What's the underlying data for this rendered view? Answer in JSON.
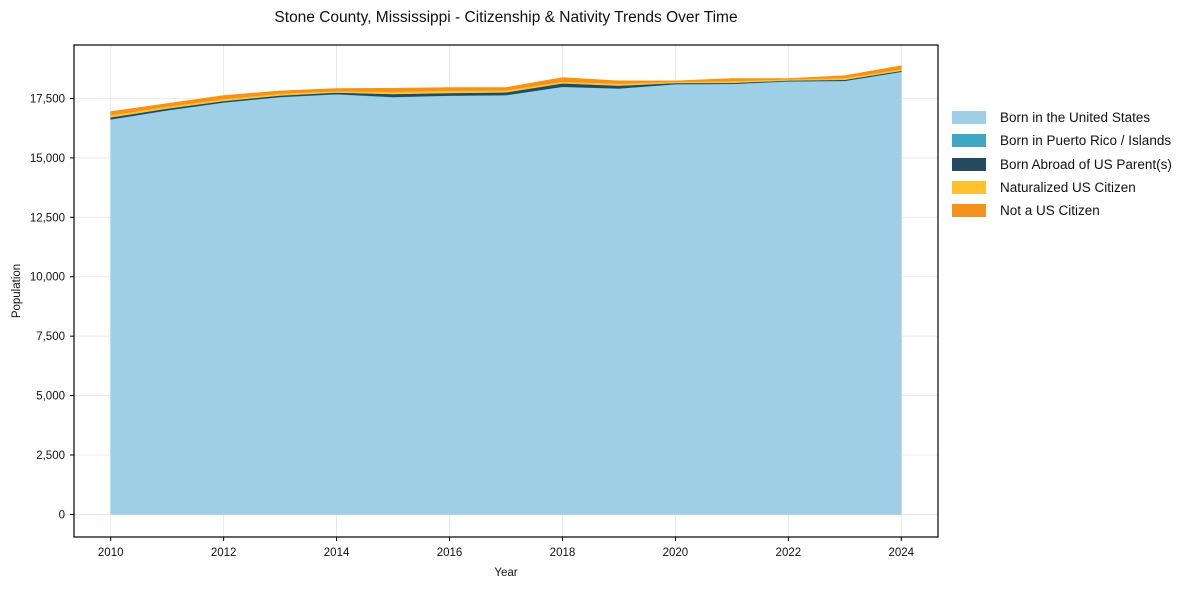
{
  "chart_data": {
    "type": "area",
    "stacked": true,
    "title": "Stone County, Mississippi - Citizenship & Nativity Trends Over Time",
    "xlabel": "Year",
    "ylabel": "Population",
    "x": [
      2010,
      2011,
      2012,
      2013,
      2014,
      2015,
      2016,
      2017,
      2018,
      2019,
      2020,
      2021,
      2022,
      2023,
      2024
    ],
    "x_ticks": [
      "2010",
      "2012",
      "2014",
      "2016",
      "2018",
      "2020",
      "2022",
      "2024"
    ],
    "y_ticks": [
      "0",
      "2,500",
      "5,000",
      "7,500",
      "10,000",
      "12,500",
      "15,000",
      "17,500"
    ],
    "ylim": [
      -950,
      19750
    ],
    "xlim": [
      2009.35,
      2024.65
    ],
    "grid": true,
    "legend_position": "right, outside",
    "series": [
      {
        "name": "Born in the United States",
        "color": "#9ecfe6",
        "values": [
          16620,
          17000,
          17330,
          17560,
          17680,
          17560,
          17620,
          17640,
          17990,
          17920,
          18100,
          18110,
          18220,
          18240,
          18620
        ]
      },
      {
        "name": "Born in Puerto Rico / Islands",
        "color": "#3fa7c4",
        "values": [
          10,
          10,
          10,
          10,
          10,
          10,
          10,
          10,
          10,
          10,
          10,
          10,
          10,
          10,
          10
        ]
      },
      {
        "name": "Born Abroad of US Parent(s)",
        "color": "#234a5e",
        "values": [
          80,
          70,
          60,
          60,
          60,
          120,
          100,
          110,
          140,
          110,
          40,
          40,
          30,
          40,
          40
        ]
      },
      {
        "name": "Naturalized US Citizen",
        "color": "#fec22f",
        "values": [
          90,
          80,
          80,
          80,
          70,
          90,
          100,
          90,
          70,
          90,
          60,
          80,
          50,
          80,
          70
        ]
      },
      {
        "name": "Not a US Citizen",
        "color": "#f5921e",
        "values": [
          150,
          130,
          140,
          110,
          100,
          150,
          130,
          110,
          170,
          110,
          30,
          100,
          30,
          90,
          140
        ]
      }
    ]
  }
}
